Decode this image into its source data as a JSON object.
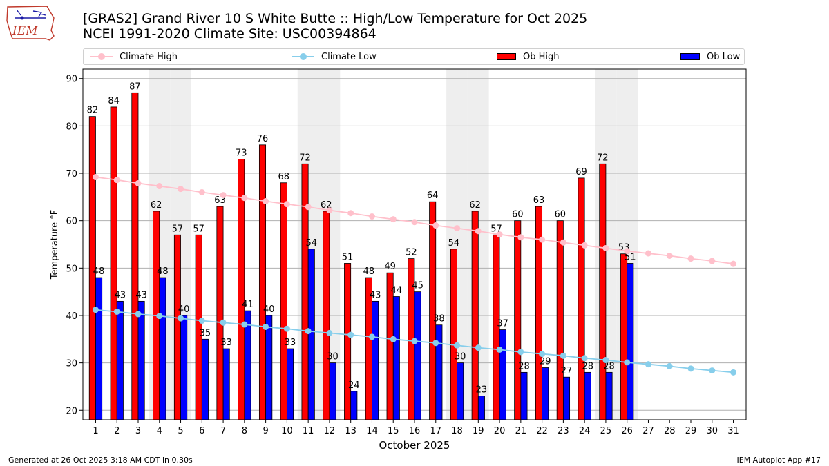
{
  "header": {
    "title_line1": "[GRAS2] Grand River 10 S White Butte :: High/Low Temperature for Oct 2025",
    "title_line2": "NCEI 1991-2020 Climate Site: USC00394864",
    "logo_text": "IEM"
  },
  "legend": [
    {
      "label": "Climate High",
      "kind": "line",
      "color": "#ffc0cb"
    },
    {
      "label": "Climate Low",
      "kind": "line",
      "color": "#87ceeb"
    },
    {
      "label": "Ob High",
      "kind": "box",
      "color": "#ff0000"
    },
    {
      "label": "Ob Low",
      "kind": "box",
      "color": "#0000ff"
    }
  ],
  "footer": {
    "generated": "Generated at 26 Oct 2025 3:18 AM CDT in 0.30s",
    "app": "IEM Autoplot App #17"
  },
  "chart_data": {
    "type": "bar",
    "xlabel": "October 2025",
    "ylabel": "Temperature °F",
    "ylim": [
      18,
      92
    ],
    "yticks": [
      20,
      30,
      40,
      50,
      60,
      70,
      80,
      90
    ],
    "grid": "horizontal",
    "legend_position": "top",
    "days": [
      1,
      2,
      3,
      4,
      5,
      6,
      7,
      8,
      9,
      10,
      11,
      12,
      13,
      14,
      15,
      16,
      17,
      18,
      19,
      20,
      21,
      22,
      23,
      24,
      25,
      26,
      27,
      28,
      29,
      30,
      31
    ],
    "shaded_weekend_days": [
      4,
      5,
      11,
      12,
      18,
      19,
      25,
      26
    ],
    "ob_high": [
      82,
      84,
      87,
      62,
      57,
      57,
      63,
      73,
      76,
      68,
      72,
      62,
      51,
      48,
      49,
      52,
      64,
      54,
      62,
      57,
      60,
      63,
      60,
      69,
      72,
      53
    ],
    "ob_low": [
      48,
      43,
      43,
      48,
      40,
      35,
      33,
      41,
      40,
      33,
      54,
      30,
      24,
      43,
      44,
      45,
      38,
      30,
      23,
      37,
      28,
      29,
      27,
      28,
      28,
      51
    ],
    "climate_high": [
      69.2,
      68.6,
      67.9,
      67.3,
      66.7,
      66.0,
      65.4,
      64.8,
      64.1,
      63.5,
      62.9,
      62.2,
      61.6,
      60.9,
      60.3,
      59.7,
      59.0,
      58.4,
      57.8,
      57.1,
      56.5,
      56.0,
      55.4,
      54.8,
      54.2,
      53.6,
      53.1,
      52.6,
      52.0,
      51.5,
      50.9
    ],
    "climate_low": [
      41.2,
      40.8,
      40.3,
      39.9,
      39.4,
      38.9,
      38.5,
      38.1,
      37.6,
      37.2,
      36.7,
      36.3,
      35.9,
      35.5,
      35.0,
      34.6,
      34.2,
      33.7,
      33.2,
      32.8,
      32.3,
      31.9,
      31.5,
      31.0,
      30.6,
      30.1,
      29.7,
      29.3,
      28.8,
      28.4,
      28.0
    ],
    "series": [
      {
        "name": "Climate High",
        "color": "#ffc0cb"
      },
      {
        "name": "Climate Low",
        "color": "#87ceeb"
      },
      {
        "name": "Ob High",
        "color": "#ff0000"
      },
      {
        "name": "Ob Low",
        "color": "#0000ff"
      }
    ]
  }
}
